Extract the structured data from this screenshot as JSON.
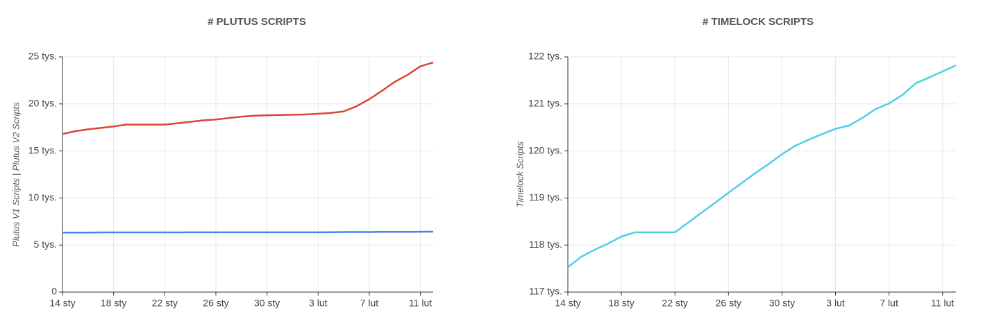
{
  "chart_data": [
    {
      "type": "line",
      "title": "# PLUTUS SCRIPTS",
      "y_label": "Plutus V1 Scripts | Plutus V2 Scripts",
      "categories": [
        "14 sty",
        null,
        null,
        null,
        "18 sty",
        null,
        null,
        null,
        "22 sty",
        null,
        null,
        null,
        "26 sty",
        null,
        null,
        null,
        "30 sty",
        null,
        null,
        null,
        "3 lut",
        null,
        null,
        null,
        "7 lut",
        null,
        null,
        null,
        "11 lut",
        null
      ],
      "series": [
        {
          "color": "#db4437",
          "values": [
            16800,
            17100,
            17300,
            17450,
            17600,
            17800,
            17800,
            17800,
            17800,
            17950,
            18100,
            18250,
            18350,
            18500,
            18650,
            18750,
            18800,
            18820,
            18850,
            18880,
            18950,
            19050,
            19200,
            19750,
            20500,
            21400,
            22350,
            23100,
            24000,
            24400
          ]
        },
        {
          "color": "#4285f4",
          "values": [
            6330,
            6330,
            6330,
            6340,
            6340,
            6340,
            6340,
            6340,
            6340,
            6340,
            6350,
            6350,
            6350,
            6350,
            6350,
            6350,
            6350,
            6350,
            6350,
            6350,
            6350,
            6360,
            6380,
            6380,
            6380,
            6400,
            6400,
            6400,
            6410,
            6420
          ]
        }
      ],
      "ylim": [
        0,
        25000
      ],
      "yticks": [
        0,
        {
          "value": 5000,
          "label": "5 tys."
        },
        {
          "value": 10000,
          "label": "10 tys."
        },
        {
          "value": 15000,
          "label": "15 tys."
        },
        {
          "value": 20000,
          "label": "20 tys."
        },
        {
          "value": 25000,
          "label": "25 tys."
        }
      ],
      "grid": true
    },
    {
      "type": "line",
      "title": "# TIMELOCK SCRIPTS",
      "y_label": "Timelock Scripts",
      "categories": [
        "14 sty",
        null,
        null,
        null,
        "18 sty",
        null,
        null,
        null,
        "22 sty",
        null,
        null,
        null,
        "26 sty",
        null,
        null,
        null,
        "30 sty",
        null,
        null,
        null,
        "3 lut",
        null,
        null,
        null,
        "7 lut",
        null,
        null,
        null,
        "11 lut",
        null
      ],
      "series": [
        {
          "color": "#4dd0e1",
          "values": [
            117530,
            117750,
            117900,
            118030,
            118180,
            118270,
            118270,
            118270,
            118270,
            118480,
            118690,
            118900,
            119110,
            119320,
            119530,
            119720,
            119930,
            120110,
            120240,
            120360,
            120470,
            120540,
            120700,
            120890,
            121010,
            121190,
            121440,
            121560,
            121690,
            121820
          ]
        }
      ],
      "ylim": [
        117000,
        122000
      ],
      "yticks": [
        {
          "value": 117000,
          "label": "117 tys."
        },
        {
          "value": 118000,
          "label": "118 tys."
        },
        {
          "value": 119000,
          "label": "119 tys."
        },
        {
          "value": 120000,
          "label": "120 tys."
        },
        {
          "value": 121000,
          "label": "121 tys."
        },
        {
          "value": 122000,
          "label": "122 tys."
        }
      ],
      "grid": true
    }
  ]
}
